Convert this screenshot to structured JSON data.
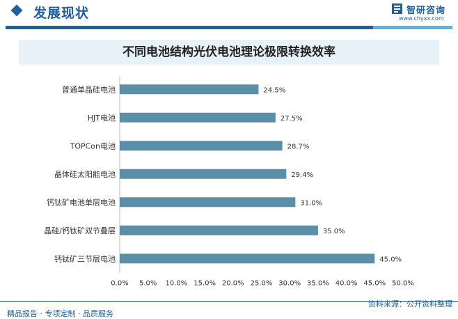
{
  "header": {
    "section_title": "发展现状",
    "logo_text": "智研咨询",
    "logo_url": "www.chyxx.com"
  },
  "colors": {
    "brand": "#1f5f9c",
    "accent": "#4fb8e6",
    "bar": "#5b8fa8",
    "title_band": "#e6f1f8"
  },
  "chart_data": {
    "type": "bar",
    "orientation": "horizontal",
    "title": "不同电池结构光伏电池理论极限转换效率",
    "categories": [
      "普通单晶硅电池",
      "HJT电池",
      "TOPCon电池",
      "晶体硅太阳能电池",
      "钙钛矿电池单层电池",
      "晶硅/钙钛矿双节叠层",
      "钙钛矿三节层电池"
    ],
    "values": [
      24.5,
      27.5,
      28.7,
      29.4,
      31.0,
      35.0,
      45.0
    ],
    "value_labels": [
      "24.5%",
      "27.5%",
      "28.7%",
      "29.4%",
      "31.0%",
      "35.0%",
      "45.0%"
    ],
    "xlim": [
      0,
      50
    ],
    "xticks": [
      0,
      5,
      10,
      15,
      20,
      25,
      30,
      35,
      40,
      45,
      50
    ],
    "xtick_labels": [
      "0.0%",
      "5.0%",
      "10.0%",
      "15.0%",
      "20.0%",
      "25.0%",
      "30.0%",
      "35.0%",
      "40.0%",
      "45.0%",
      "50.0%"
    ],
    "xlabel": "",
    "ylabel": "",
    "grid": false,
    "legend": "none"
  },
  "footer": {
    "left_text": "精品报告 · 专项定制 · 品质服务",
    "source_text": "资料来源：公开资料整理"
  }
}
